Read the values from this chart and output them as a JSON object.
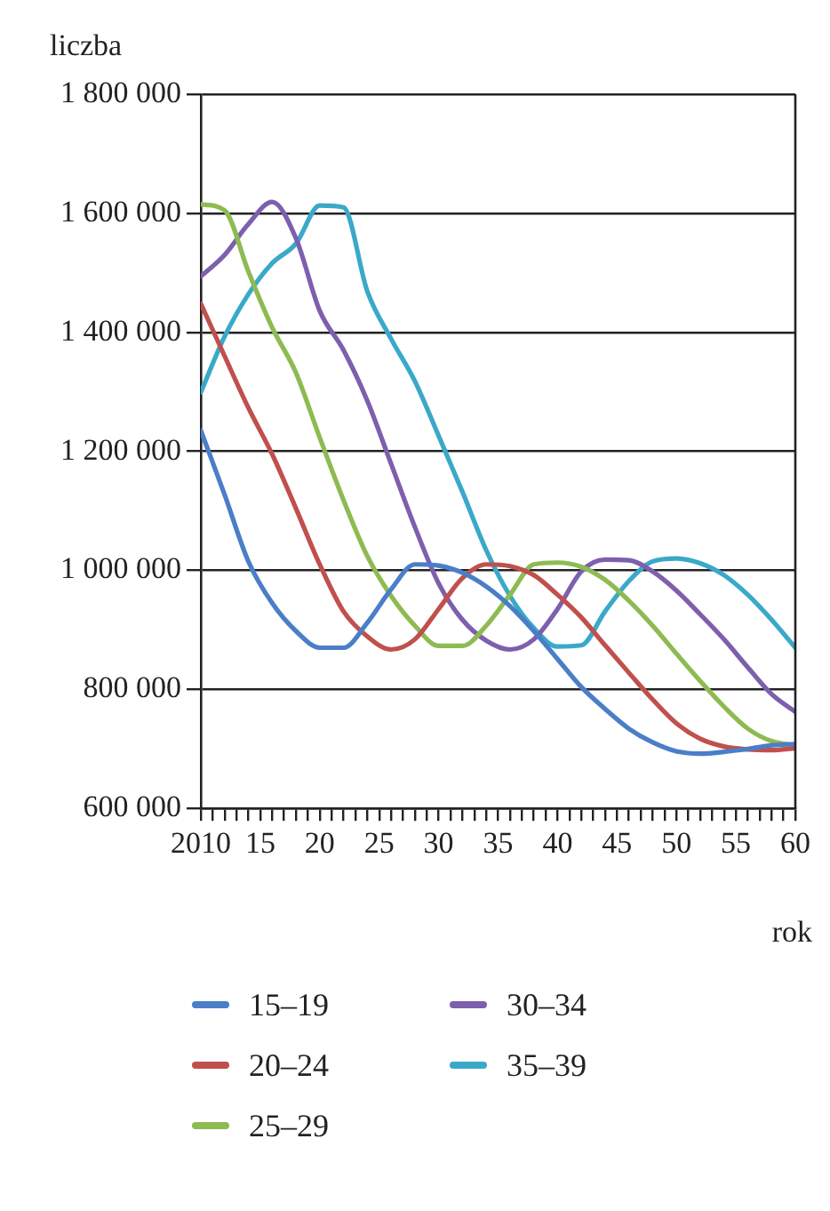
{
  "chart_data": {
    "type": "line",
    "xlabel": "rok",
    "ylabel": "liczba",
    "x": [
      2010,
      2012,
      2014,
      2016,
      2018,
      2020,
      2022,
      2024,
      2026,
      2028,
      2030,
      2032,
      2034,
      2036,
      2038,
      2040,
      2042,
      2044,
      2046,
      2048,
      2050,
      2052,
      2054,
      2056,
      2058,
      2060
    ],
    "series": [
      {
        "name": "15–19",
        "color": "#4a7ec8",
        "values": [
          1235000,
          1127000,
          1015000,
          945000,
          898000,
          870000,
          870000,
          912000,
          968000,
          1010000,
          1008000,
          996000,
          973000,
          940000,
          898000,
          851000,
          804000,
          767000,
          734000,
          711000,
          696000,
          692000,
          695000,
          700000,
          706000,
          708000
        ]
      },
      {
        "name": "20–24",
        "color": "#c0504d",
        "values": [
          1448000,
          1360000,
          1273000,
          1195000,
          1104000,
          1010000,
          931000,
          889000,
          867000,
          884000,
          935000,
          987000,
          1010000,
          1007000,
          992000,
          959000,
          921000,
          874000,
          828000,
          783000,
          743000,
          717000,
          704000,
          699000,
          698000,
          701000
        ]
      },
      {
        "name": "25–29",
        "color": "#8dbb52",
        "values": [
          1615000,
          1605000,
          1502000,
          1408000,
          1332000,
          1223000,
          1118000,
          1024000,
          957000,
          907000,
          873000,
          873000,
          907000,
          959000,
          1010000,
          1013000,
          1006000,
          984000,
          949000,
          907000,
          860000,
          814000,
          771000,
          734000,
          713000,
          706000
        ]
      },
      {
        "name": "30–34",
        "color": "#7e5fae",
        "values": [
          1494000,
          1530000,
          1582000,
          1619000,
          1558000,
          1436000,
          1370000,
          1285000,
          1179000,
          1073000,
          978000,
          917000,
          882000,
          867000,
          884000,
          935000,
          998000,
          1018000,
          1017000,
          998000,
          966000,
          926000,
          884000,
          837000,
          792000,
          762000
        ]
      },
      {
        "name": "35–39",
        "color": "#3aa9c9",
        "values": [
          1299000,
          1393000,
          1464000,
          1516000,
          1549000,
          1613000,
          1610000,
          1469000,
          1389000,
          1318000,
          1226000,
          1132000,
          1034000,
          957000,
          903000,
          872000,
          874000,
          931000,
          982000,
          1015000,
          1020000,
          1012000,
          992000,
          959000,
          917000,
          870000
        ]
      }
    ],
    "xlim": [
      2010,
      2060
    ],
    "xticks": [
      {
        "value": 2010,
        "label": "2010"
      },
      {
        "value": 2011,
        "label": null
      },
      {
        "value": 2012,
        "label": null
      },
      {
        "value": 2013,
        "label": null
      },
      {
        "value": 2014,
        "label": null
      },
      {
        "value": 2015,
        "label": "15"
      },
      {
        "value": 2016,
        "label": null
      },
      {
        "value": 2017,
        "label": null
      },
      {
        "value": 2018,
        "label": null
      },
      {
        "value": 2019,
        "label": null
      },
      {
        "value": 2020,
        "label": "20"
      },
      {
        "value": 2021,
        "label": null
      },
      {
        "value": 2022,
        "label": null
      },
      {
        "value": 2023,
        "label": null
      },
      {
        "value": 2024,
        "label": null
      },
      {
        "value": 2025,
        "label": "25"
      },
      {
        "value": 2026,
        "label": null
      },
      {
        "value": 2027,
        "label": null
      },
      {
        "value": 2028,
        "label": null
      },
      {
        "value": 2029,
        "label": null
      },
      {
        "value": 2030,
        "label": "30"
      },
      {
        "value": 2031,
        "label": null
      },
      {
        "value": 2032,
        "label": null
      },
      {
        "value": 2033,
        "label": null
      },
      {
        "value": 2034,
        "label": null
      },
      {
        "value": 2035,
        "label": "35"
      },
      {
        "value": 2036,
        "label": null
      },
      {
        "value": 2037,
        "label": null
      },
      {
        "value": 2038,
        "label": null
      },
      {
        "value": 2039,
        "label": null
      },
      {
        "value": 2040,
        "label": "40"
      },
      {
        "value": 2041,
        "label": null
      },
      {
        "value": 2042,
        "label": null
      },
      {
        "value": 2043,
        "label": null
      },
      {
        "value": 2044,
        "label": null
      },
      {
        "value": 2045,
        "label": "45"
      },
      {
        "value": 2046,
        "label": null
      },
      {
        "value": 2047,
        "label": null
      },
      {
        "value": 2048,
        "label": null
      },
      {
        "value": 2049,
        "label": null
      },
      {
        "value": 2050,
        "label": "50"
      },
      {
        "value": 2051,
        "label": null
      },
      {
        "value": 2052,
        "label": null
      },
      {
        "value": 2053,
        "label": null
      },
      {
        "value": 2054,
        "label": null
      },
      {
        "value": 2055,
        "label": "55"
      },
      {
        "value": 2056,
        "label": null
      },
      {
        "value": 2057,
        "label": null
      },
      {
        "value": 2058,
        "label": null
      },
      {
        "value": 2059,
        "label": null
      },
      {
        "value": 2060,
        "label": "60"
      }
    ],
    "ylim": [
      600000,
      1800000
    ],
    "yticks": [
      {
        "value": 600000,
        "label": "600 000"
      },
      {
        "value": 800000,
        "label": "800 000"
      },
      {
        "value": 1000000,
        "label": "1 000 000"
      },
      {
        "value": 1200000,
        "label": "1 200 000"
      },
      {
        "value": 1400000,
        "label": "1 400 000"
      },
      {
        "value": 1600000,
        "label": "1 600 000"
      },
      {
        "value": 1800000,
        "label": "1 800 000"
      }
    ],
    "grid": "y",
    "legend": "bottom",
    "marker": "none",
    "line_style": "solid"
  }
}
